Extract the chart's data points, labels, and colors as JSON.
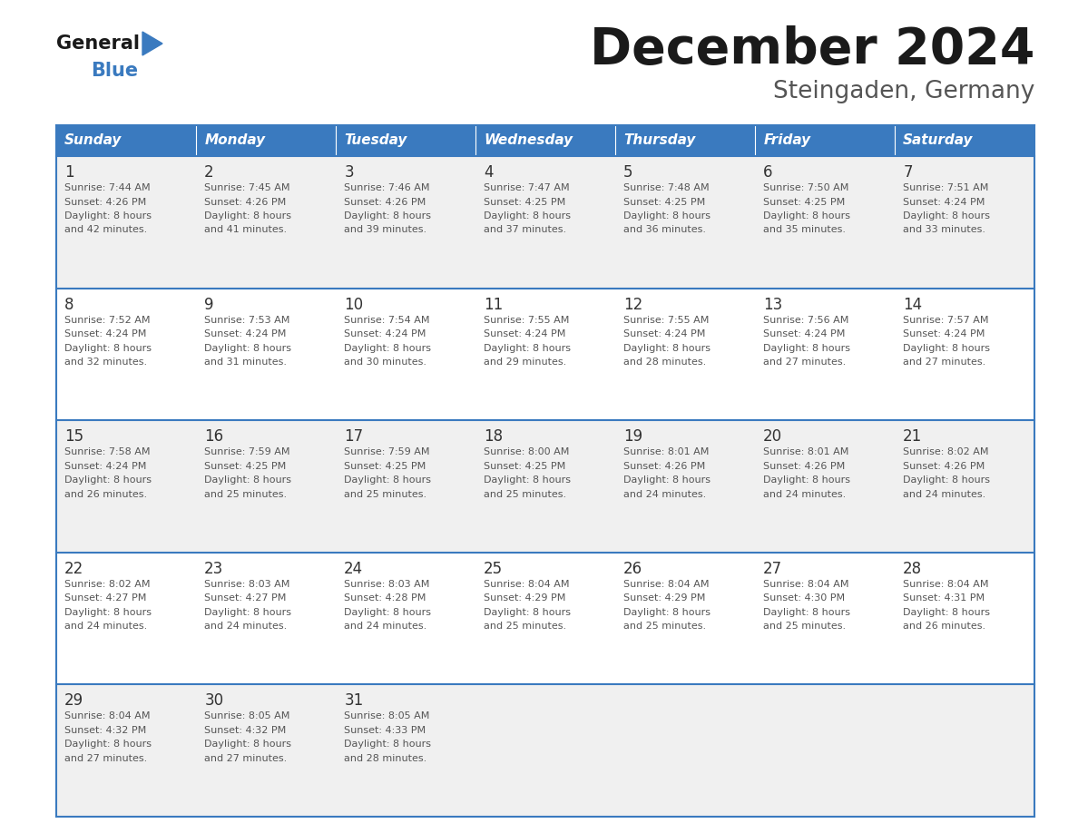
{
  "title": "December 2024",
  "subtitle": "Steingaden, Germany",
  "header_color": "#3a7abf",
  "header_text_color": "#ffffff",
  "days_of_week": [
    "Sunday",
    "Monday",
    "Tuesday",
    "Wednesday",
    "Thursday",
    "Friday",
    "Saturday"
  ],
  "weeks": [
    [
      {
        "day": 1,
        "sunrise": "7:44 AM",
        "sunset": "4:26 PM",
        "daylight": "8 hours and 42 minutes"
      },
      {
        "day": 2,
        "sunrise": "7:45 AM",
        "sunset": "4:26 PM",
        "daylight": "8 hours and 41 minutes"
      },
      {
        "day": 3,
        "sunrise": "7:46 AM",
        "sunset": "4:26 PM",
        "daylight": "8 hours and 39 minutes"
      },
      {
        "day": 4,
        "sunrise": "7:47 AM",
        "sunset": "4:25 PM",
        "daylight": "8 hours and 37 minutes"
      },
      {
        "day": 5,
        "sunrise": "7:48 AM",
        "sunset": "4:25 PM",
        "daylight": "8 hours and 36 minutes"
      },
      {
        "day": 6,
        "sunrise": "7:50 AM",
        "sunset": "4:25 PM",
        "daylight": "8 hours and 35 minutes"
      },
      {
        "day": 7,
        "sunrise": "7:51 AM",
        "sunset": "4:24 PM",
        "daylight": "8 hours and 33 minutes"
      }
    ],
    [
      {
        "day": 8,
        "sunrise": "7:52 AM",
        "sunset": "4:24 PM",
        "daylight": "8 hours and 32 minutes"
      },
      {
        "day": 9,
        "sunrise": "7:53 AM",
        "sunset": "4:24 PM",
        "daylight": "8 hours and 31 minutes"
      },
      {
        "day": 10,
        "sunrise": "7:54 AM",
        "sunset": "4:24 PM",
        "daylight": "8 hours and 30 minutes"
      },
      {
        "day": 11,
        "sunrise": "7:55 AM",
        "sunset": "4:24 PM",
        "daylight": "8 hours and 29 minutes"
      },
      {
        "day": 12,
        "sunrise": "7:55 AM",
        "sunset": "4:24 PM",
        "daylight": "8 hours and 28 minutes"
      },
      {
        "day": 13,
        "sunrise": "7:56 AM",
        "sunset": "4:24 PM",
        "daylight": "8 hours and 27 minutes"
      },
      {
        "day": 14,
        "sunrise": "7:57 AM",
        "sunset": "4:24 PM",
        "daylight": "8 hours and 27 minutes"
      }
    ],
    [
      {
        "day": 15,
        "sunrise": "7:58 AM",
        "sunset": "4:24 PM",
        "daylight": "8 hours and 26 minutes"
      },
      {
        "day": 16,
        "sunrise": "7:59 AM",
        "sunset": "4:25 PM",
        "daylight": "8 hours and 25 minutes"
      },
      {
        "day": 17,
        "sunrise": "7:59 AM",
        "sunset": "4:25 PM",
        "daylight": "8 hours and 25 minutes"
      },
      {
        "day": 18,
        "sunrise": "8:00 AM",
        "sunset": "4:25 PM",
        "daylight": "8 hours and 25 minutes"
      },
      {
        "day": 19,
        "sunrise": "8:01 AM",
        "sunset": "4:26 PM",
        "daylight": "8 hours and 24 minutes"
      },
      {
        "day": 20,
        "sunrise": "8:01 AM",
        "sunset": "4:26 PM",
        "daylight": "8 hours and 24 minutes"
      },
      {
        "day": 21,
        "sunrise": "8:02 AM",
        "sunset": "4:26 PM",
        "daylight": "8 hours and 24 minutes"
      }
    ],
    [
      {
        "day": 22,
        "sunrise": "8:02 AM",
        "sunset": "4:27 PM",
        "daylight": "8 hours and 24 minutes"
      },
      {
        "day": 23,
        "sunrise": "8:03 AM",
        "sunset": "4:27 PM",
        "daylight": "8 hours and 24 minutes"
      },
      {
        "day": 24,
        "sunrise": "8:03 AM",
        "sunset": "4:28 PM",
        "daylight": "8 hours and 24 minutes"
      },
      {
        "day": 25,
        "sunrise": "8:04 AM",
        "sunset": "4:29 PM",
        "daylight": "8 hours and 25 minutes"
      },
      {
        "day": 26,
        "sunrise": "8:04 AM",
        "sunset": "4:29 PM",
        "daylight": "8 hours and 25 minutes"
      },
      {
        "day": 27,
        "sunrise": "8:04 AM",
        "sunset": "4:30 PM",
        "daylight": "8 hours and 25 minutes"
      },
      {
        "day": 28,
        "sunrise": "8:04 AM",
        "sunset": "4:31 PM",
        "daylight": "8 hours and 26 minutes"
      }
    ],
    [
      {
        "day": 29,
        "sunrise": "8:04 AM",
        "sunset": "4:32 PM",
        "daylight": "8 hours and 27 minutes"
      },
      {
        "day": 30,
        "sunrise": "8:05 AM",
        "sunset": "4:32 PM",
        "daylight": "8 hours and 27 minutes"
      },
      {
        "day": 31,
        "sunrise": "8:05 AM",
        "sunset": "4:33 PM",
        "daylight": "8 hours and 28 minutes"
      },
      null,
      null,
      null,
      null
    ]
  ],
  "background_color": "#ffffff",
  "cell_bg_odd": "#f0f0f0",
  "cell_bg_even": "#ffffff",
  "divider_color": "#3a7abf",
  "text_color_day": "#333333",
  "text_color_info": "#555555",
  "logo_color_black": "#1a1a1a",
  "logo_color_blue": "#3a7abf",
  "fig_width": 11.88,
  "fig_height": 9.18,
  "dpi": 100
}
